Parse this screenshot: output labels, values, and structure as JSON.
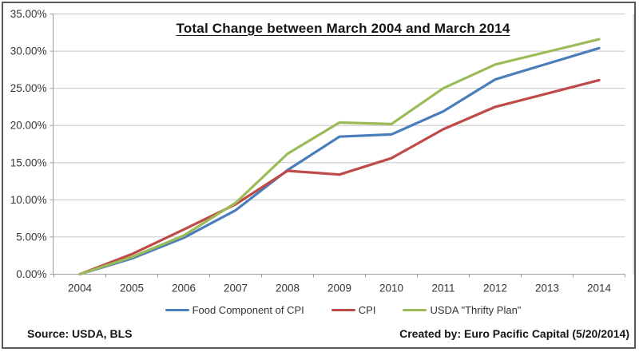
{
  "title": "Total Change between March 2004 and March 2014",
  "source_note": "Source: USDA, BLS",
  "credit_note": "Created by: Euro Pacific Capital (5/20/2014)",
  "colors": {
    "grid": "#c6c6c6",
    "axis": "#9c9c9c",
    "axis_text": "#363636",
    "legend_text": "#333333"
  },
  "chart_data": {
    "type": "line",
    "title": "Total Change between March 2004 and March 2014",
    "categories": [
      "2004",
      "2005",
      "2006",
      "2007",
      "2008",
      "2009",
      "2010",
      "2011",
      "2012",
      "2013",
      "2014"
    ],
    "xlabel": "",
    "ylabel": "",
    "unit": "percent cumulative change",
    "ylim": [
      0,
      35
    ],
    "y_tick_step": 5,
    "y_tick_labels": [
      "0.00%",
      "5.00%",
      "10.00%",
      "15.00%",
      "20.00%",
      "25.00%",
      "30.00%",
      "35.00%"
    ],
    "grid": true,
    "legend_position": "bottom",
    "series": [
      {
        "name": "Food Component of CPI",
        "color": "#4a7ebb",
        "values": [
          0.0,
          2.1,
          4.9,
          8.6,
          14.0,
          18.5,
          18.8,
          21.9,
          26.2,
          28.3,
          30.4
        ]
      },
      {
        "name": "CPI",
        "color": "#be4b48",
        "values": [
          0.0,
          2.7,
          6.0,
          9.4,
          13.9,
          13.4,
          15.6,
          19.5,
          22.5,
          24.3,
          26.1
        ]
      },
      {
        "name": "USDA \"Thrifty Plan\"",
        "color": "#9bbb59",
        "values": [
          0.0,
          2.3,
          5.2,
          9.6,
          16.2,
          20.4,
          20.2,
          25.0,
          28.2,
          29.9,
          31.6
        ]
      }
    ]
  }
}
